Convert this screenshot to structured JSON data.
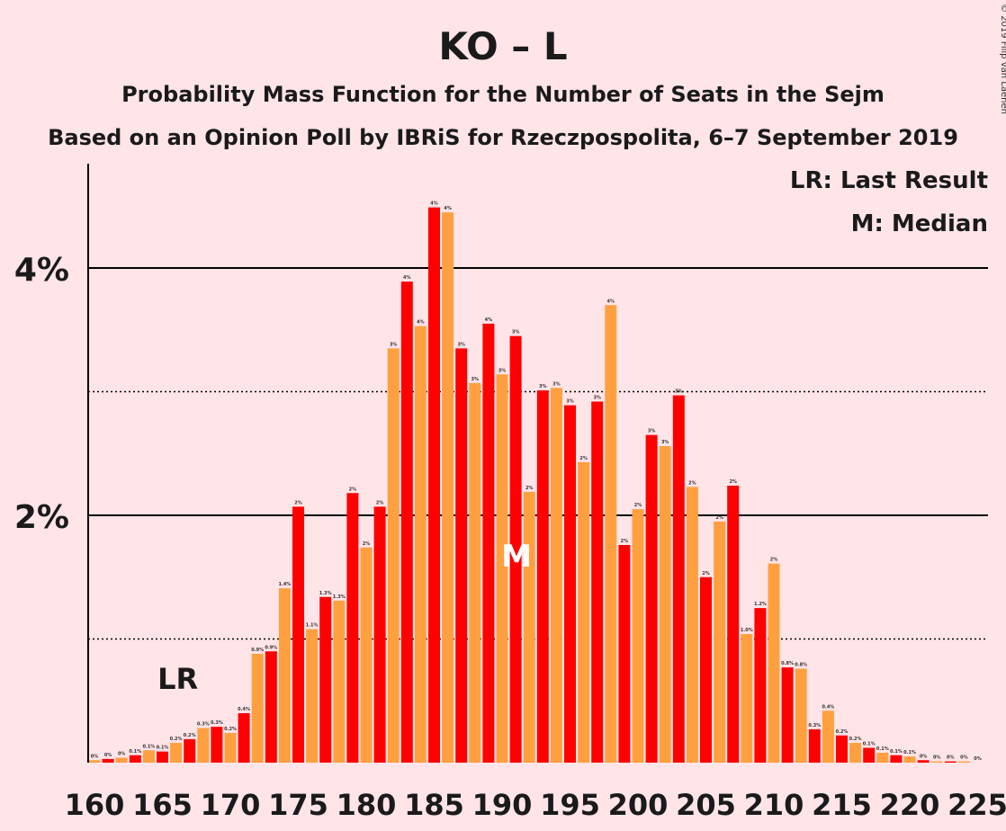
{
  "chart_data": {
    "type": "bar",
    "title": "KO – L",
    "subtitle1": "Probability Mass Function for the Number of Seats in the Sejm",
    "subtitle2": "Based on an Opinion Poll by IBRiS for Rzeczpospolita, 6–7 September 2019",
    "copyright": "© 2019 Filip van Laenen",
    "legend": [
      "LR: Last Result",
      "M: Median"
    ],
    "last_result_label": "LR",
    "last_result_seat": 166,
    "median_label": "M",
    "median_seat": 191,
    "x_start": 160,
    "x_ticks": [
      "160",
      "165",
      "170",
      "175",
      "180",
      "185",
      "190",
      "195",
      "200",
      "205",
      "210",
      "215",
      "220",
      "225"
    ],
    "y_ticks": [
      "2%",
      "4%"
    ],
    "ylim": [
      0,
      4.8
    ],
    "grid": {
      "solid": [
        2,
        4
      ],
      "dotted": [
        1,
        3
      ]
    },
    "colors": {
      "odd": "#FF0000",
      "even": "#FFA040",
      "background": "#FFE4E8"
    },
    "values": [
      0.02,
      0.03,
      0.04,
      0.06,
      0.1,
      0.09,
      0.16,
      0.19,
      0.28,
      0.29,
      0.24,
      0.4,
      0.88,
      0.9,
      1.41,
      2.07,
      1.08,
      1.34,
      1.31,
      2.18,
      1.74,
      2.07,
      3.35,
      3.89,
      3.53,
      4.49,
      4.45,
      3.35,
      3.07,
      3.55,
      3.14,
      3.45,
      2.19,
      3.01,
      3.03,
      2.89,
      2.43,
      2.92,
      3.7,
      1.76,
      2.05,
      2.65,
      2.56,
      2.97,
      2.23,
      1.5,
      1.95,
      2.24,
      1.04,
      1.25,
      1.61,
      0.77,
      0.76,
      0.27,
      0.42,
      0.22,
      0.16,
      0.12,
      0.08,
      0.06,
      0.05,
      0.02,
      0.01,
      0.01,
      0.01,
      0.0
    ],
    "data_labels": [
      "0%",
      "0%",
      "0%",
      "0.1%",
      "0.1%",
      "0.1%",
      "0.2%",
      "0.2%",
      "0.3%",
      "0.3%",
      "0.2%",
      "0.4%",
      "0.9%",
      "0.9%",
      "1.4%",
      "2%",
      "1.1%",
      "1.3%",
      "1.3%",
      "2%",
      "2%",
      "2%",
      "3%",
      "4%",
      "4%",
      "4%",
      "4%",
      "3%",
      "3%",
      "4%",
      "3%",
      "3%",
      "2%",
      "3%",
      "3%",
      "3%",
      "2%",
      "3%",
      "4%",
      "2%",
      "2%",
      "3%",
      "3%",
      "3%",
      "2%",
      "2%",
      "2%",
      "2%",
      "1.0%",
      "1.2%",
      "2%",
      "0.8%",
      "0.8%",
      "0.3%",
      "0.4%",
      "0.2%",
      "0.2%",
      "0.1%",
      "0.1%",
      "0.1%",
      "0.1%",
      "0%",
      "0%",
      "0%",
      "0%",
      "0%"
    ]
  }
}
